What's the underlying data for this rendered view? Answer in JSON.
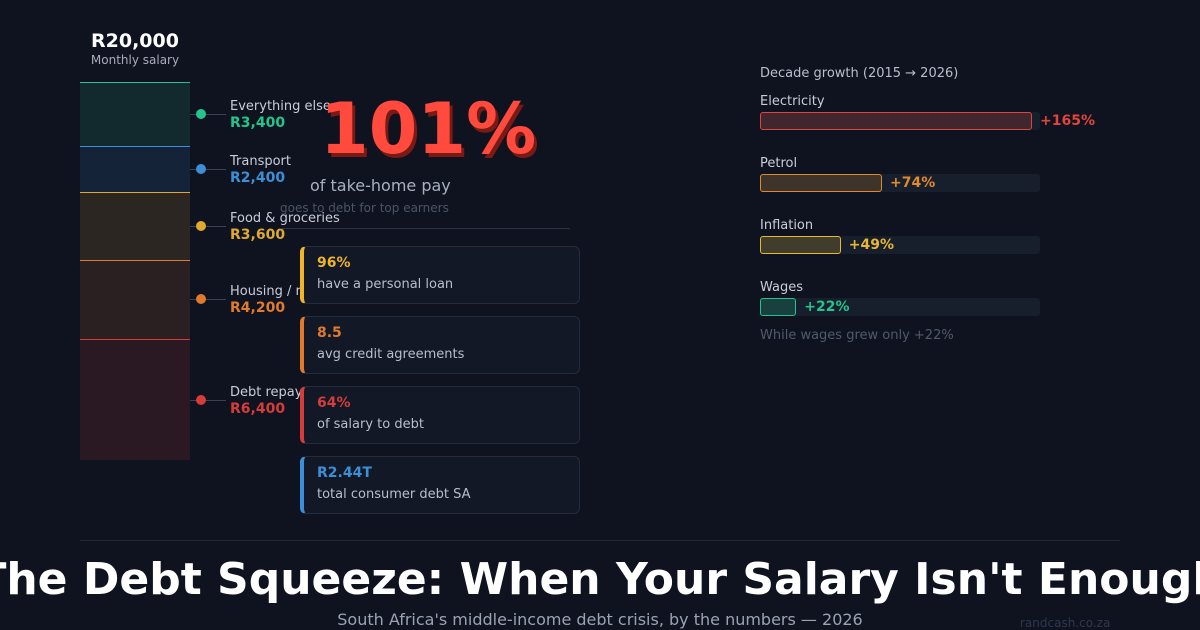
{
  "salary": {
    "total": {
      "value": 20000,
      "label": "R20,000"
    },
    "caption": "Monthly salary",
    "segments": [
      {
        "name": "Everything else",
        "value": 3400,
        "label": "R3,400",
        "color": "#22c58b"
      },
      {
        "name": "Transport",
        "value": 2400,
        "label": "R2,400",
        "color": "#3b8fd6"
      },
      {
        "name": "Food & groceries",
        "value": 3600,
        "label": "R3,600",
        "color": "#e0a82e"
      },
      {
        "name": "Housing / rent",
        "value": 4200,
        "label": "R4,200",
        "color": "#e07b2e"
      },
      {
        "name": "Debt repayments",
        "value": 6400,
        "label": "R6,400",
        "color": "#d63c3c"
      }
    ]
  },
  "headline": {
    "value": "101%",
    "text": "of take-home pay",
    "note": "goes to debt for top earners"
  },
  "stats": [
    {
      "value": "96%",
      "text": "have a personal loan",
      "color": "#f0b429"
    },
    {
      "value": "8.5",
      "text": "avg credit agreements",
      "color": "#e07b2e"
    },
    {
      "value": "64%",
      "text": "of salary to debt",
      "color": "#d63c3c"
    },
    {
      "value": "R2.44T",
      "text": "total consumer debt SA",
      "color": "#3b8fd6"
    }
  ],
  "growth": {
    "title": "Decade growth (2015 → 2026)",
    "items": [
      {
        "name": "Electricity",
        "value": 165,
        "label": "+165%",
        "color": "#e0443c"
      },
      {
        "name": "Petrol",
        "value": 74,
        "label": "+74%",
        "color": "#e08a2e"
      },
      {
        "name": "Inflation",
        "value": 49,
        "label": "+49%",
        "color": "#e8b830"
      },
      {
        "name": "Wages",
        "value": 22,
        "label": "+22%",
        "color": "#22c58b"
      }
    ],
    "note": "While wages grew only +22%"
  },
  "title": "The Debt Squeeze: When Your Salary Isn't Enough",
  "subtitle": "South Africa's middle-income debt crisis, by the numbers — 2026",
  "source": "randcash.co.za"
}
